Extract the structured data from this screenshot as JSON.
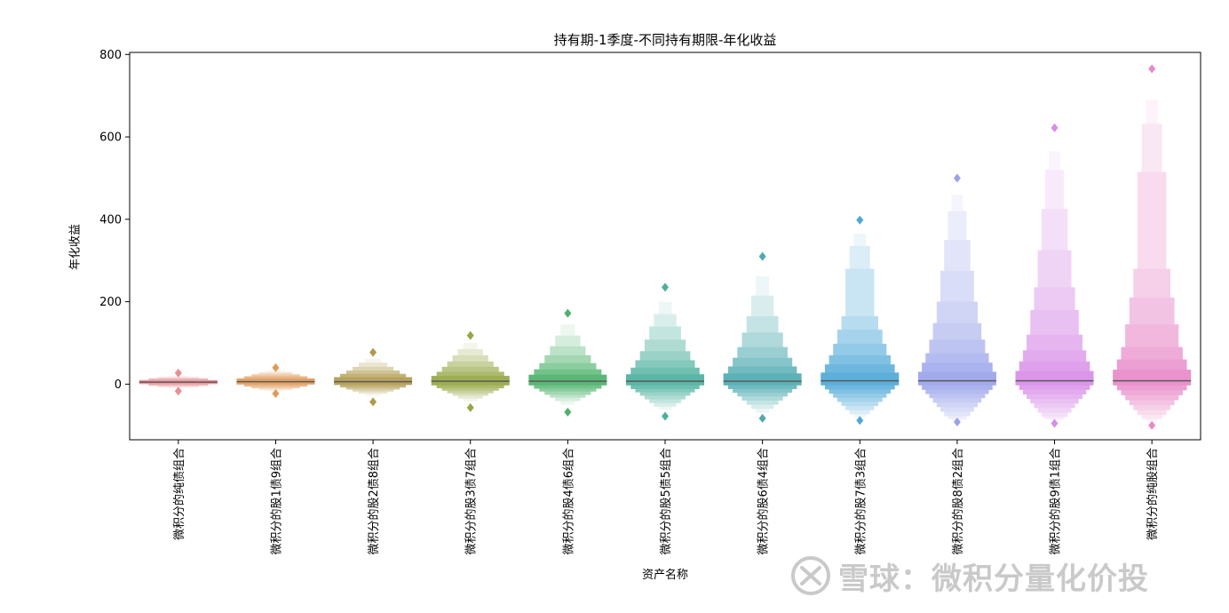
{
  "chart_data": {
    "type": "boxen",
    "title": "持有期-1季度-不同持有期限-年化收益",
    "xlabel": "资产名称",
    "ylabel": "年化收益",
    "ylim": [
      -135,
      805
    ],
    "yticks": [
      0,
      200,
      400,
      600,
      800
    ],
    "grid": false,
    "categories": [
      "微积分的纯债组合",
      "微积分的股1债9组合",
      "微积分的股2债8组合",
      "微积分的股3债7组合",
      "微积分的股4债6组合",
      "微积分的股5债5组合",
      "微积分的股6债4组合",
      "微积分的股7债3组合",
      "微积分的股8债2组合",
      "微积分的股9债1组合",
      "微积分的纯股组合"
    ],
    "colors": [
      "#e88e95",
      "#e09a5a",
      "#b09a4e",
      "#94a743",
      "#4cb16a",
      "#4db09e",
      "#4eaab0",
      "#4ea8d8",
      "#9aa3ea",
      "#d88de8",
      "#e889c8"
    ],
    "series": [
      {
        "median": 5,
        "boxes": [
          [
            0,
            10
          ],
          [
            -4,
            14
          ],
          [
            -7,
            17
          ],
          [
            -10,
            20
          ]
        ],
        "outliers": [
          27,
          -17
        ]
      },
      {
        "median": 6,
        "boxes": [
          [
            -1,
            14
          ],
          [
            -6,
            19
          ],
          [
            -10,
            24
          ],
          [
            -14,
            29
          ],
          [
            -17,
            33
          ]
        ],
        "outliers": [
          40,
          -23
        ]
      },
      {
        "median": 6,
        "boxes": [
          [
            -2,
            17
          ],
          [
            -8,
            25
          ],
          [
            -13,
            33
          ],
          [
            -18,
            42
          ],
          [
            -23,
            52
          ],
          [
            -28,
            62
          ]
        ],
        "outliers": [
          77,
          -43
        ]
      },
      {
        "median": 7,
        "boxes": [
          [
            -3,
            20
          ],
          [
            -10,
            30
          ],
          [
            -16,
            42
          ],
          [
            -22,
            55
          ],
          [
            -28,
            70
          ],
          [
            -35,
            85
          ],
          [
            -42,
            100
          ]
        ],
        "outliers": [
          118,
          -57
        ]
      },
      {
        "median": 7,
        "boxes": [
          [
            -3,
            23
          ],
          [
            -11,
            36
          ],
          [
            -18,
            51
          ],
          [
            -26,
            70
          ],
          [
            -33,
            92
          ],
          [
            -41,
            118
          ],
          [
            -50,
            145
          ]
        ],
        "outliers": [
          172,
          -68
        ]
      },
      {
        "median": 7,
        "boxes": [
          [
            -3,
            24
          ],
          [
            -12,
            40
          ],
          [
            -20,
            58
          ],
          [
            -28,
            80
          ],
          [
            -37,
            108
          ],
          [
            -46,
            140
          ],
          [
            -55,
            170
          ],
          [
            -62,
            200
          ]
        ],
        "outliers": [
          235,
          -78
        ]
      },
      {
        "median": 7,
        "boxes": [
          [
            -3,
            26
          ],
          [
            -12,
            43
          ],
          [
            -21,
            64
          ],
          [
            -30,
            90
          ],
          [
            -40,
            125
          ],
          [
            -50,
            165
          ],
          [
            -60,
            215
          ],
          [
            -70,
            262
          ]
        ],
        "outliers": [
          310,
          -83
        ]
      },
      {
        "median": 8,
        "boxes": [
          [
            -3,
            28
          ],
          [
            -13,
            48
          ],
          [
            -23,
            70
          ],
          [
            -33,
            98
          ],
          [
            -43,
            132
          ],
          [
            -53,
            165
          ],
          [
            -63,
            280
          ],
          [
            -73,
            335
          ],
          [
            -80,
            365
          ]
        ],
        "outliers": [
          398,
          -88
        ]
      },
      {
        "median": 8,
        "boxes": [
          [
            -3,
            30
          ],
          [
            -14,
            52
          ],
          [
            -24,
            75
          ],
          [
            -34,
            108
          ],
          [
            -45,
            148
          ],
          [
            -56,
            200
          ],
          [
            -67,
            275
          ],
          [
            -78,
            350
          ],
          [
            -85,
            420
          ],
          [
            -88,
            460
          ]
        ],
        "outliers": [
          500,
          -92
        ]
      },
      {
        "median": 8,
        "boxes": [
          [
            -3,
            32
          ],
          [
            -14,
            55
          ],
          [
            -25,
            82
          ],
          [
            -36,
            120
          ],
          [
            -47,
            180
          ],
          [
            -58,
            235
          ],
          [
            -69,
            325
          ],
          [
            -80,
            425
          ],
          [
            -85,
            520
          ],
          [
            -88,
            565
          ]
        ],
        "outliers": [
          622,
          -95
        ]
      },
      {
        "median": 8,
        "boxes": [
          [
            -3,
            35
          ],
          [
            -15,
            60
          ],
          [
            -27,
            90
          ],
          [
            -39,
            145
          ],
          [
            -51,
            210
          ],
          [
            -63,
            280
          ],
          [
            -75,
            515
          ],
          [
            -85,
            632
          ],
          [
            -90,
            690
          ]
        ],
        "outliers": [
          765,
          -100
        ]
      }
    ]
  },
  "watermark": {
    "text": "雪球：微积分量化价投"
  }
}
